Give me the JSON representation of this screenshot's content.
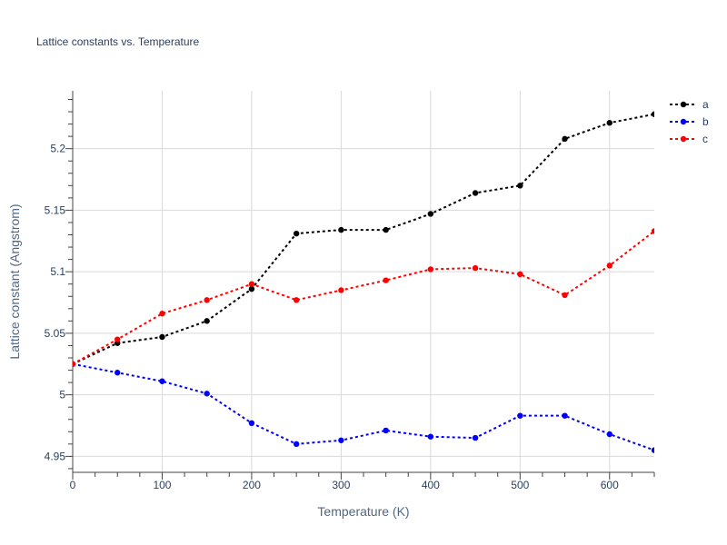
{
  "chart_data": {
    "type": "line",
    "title": "Lattice constants vs. Temperature",
    "xlabel": "Temperature (K)",
    "ylabel": "Lattice constant (Angstrom)",
    "xlim": [
      0,
      650
    ],
    "ylim": [
      4.937,
      5.247
    ],
    "x_ticks": [
      0,
      100,
      200,
      300,
      400,
      500,
      600
    ],
    "x_tick_labels": [
      "0",
      "100",
      "200",
      "300",
      "400",
      "500",
      "600"
    ],
    "y_ticks": [
      4.95,
      5.0,
      5.05,
      5.1,
      5.15,
      5.2
    ],
    "y_tick_labels": [
      "4.95",
      "5",
      "5.05",
      "5.1",
      "5.15",
      "5.2"
    ],
    "grid": true,
    "legend_position": "top-right",
    "x": [
      0,
      50,
      100,
      150,
      200,
      250,
      300,
      350,
      400,
      450,
      500,
      550,
      600,
      650
    ],
    "series": [
      {
        "name": "a",
        "color": "#000000",
        "values": [
          5.025,
          5.042,
          5.047,
          5.06,
          5.086,
          5.131,
          5.134,
          5.134,
          5.147,
          5.164,
          5.17,
          5.208,
          5.221,
          5.228
        ]
      },
      {
        "name": "b",
        "color": "#0000ff",
        "values": [
          5.025,
          5.018,
          5.011,
          5.001,
          4.977,
          4.96,
          4.963,
          4.971,
          4.966,
          4.965,
          4.983,
          4.983,
          4.968,
          4.955
        ]
      },
      {
        "name": "c",
        "color": "#ff0000",
        "values": [
          5.025,
          5.045,
          5.066,
          5.077,
          5.09,
          5.077,
          5.085,
          5.093,
          5.102,
          5.103,
          5.098,
          5.081,
          5.105,
          5.133
        ]
      }
    ]
  }
}
